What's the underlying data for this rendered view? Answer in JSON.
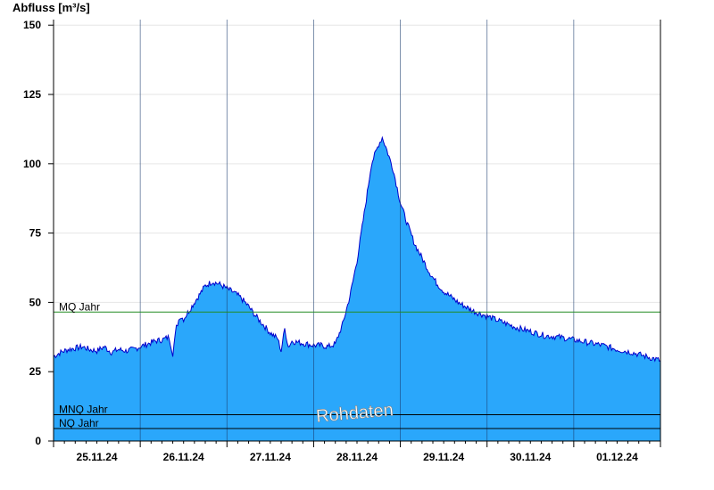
{
  "chart_data": {
    "type": "area",
    "ylabel": "Abfluss [m³/s]",
    "ylim": [
      0,
      152
    ],
    "yticks": [
      0,
      25,
      50,
      75,
      100,
      125,
      150
    ],
    "xlim": [
      "2024-11-25T00:00",
      "2024-12-02T00:00"
    ],
    "xticks": [
      {
        "day": 0.5,
        "label": "25.11.24"
      },
      {
        "day": 1.5,
        "label": "26.11.24"
      },
      {
        "day": 2.5,
        "label": "27.11.24"
      },
      {
        "day": 3.5,
        "label": "28.11.24"
      },
      {
        "day": 4.5,
        "label": "29.11.24"
      },
      {
        "day": 5.5,
        "label": "30.11.24"
      },
      {
        "day": 6.5,
        "label": "01.12.24"
      }
    ],
    "day_start": "2024-11-25",
    "grid": true,
    "series": [
      {
        "name": "",
        "color": "#2aa7fb",
        "line_color": "#0000cc",
        "points": [
          [
            "2024-11-25T00:00",
            30.5
          ],
          [
            "2024-11-25T02:00",
            32
          ],
          [
            "2024-11-25T04:00",
            33
          ],
          [
            "2024-11-25T06:00",
            33.5
          ],
          [
            "2024-11-25T08:00",
            34
          ],
          [
            "2024-11-25T10:00",
            33
          ],
          [
            "2024-11-25T12:00",
            32.5
          ],
          [
            "2024-11-25T14:00",
            34
          ],
          [
            "2024-11-25T16:00",
            32
          ],
          [
            "2024-11-25T18:00",
            33
          ],
          [
            "2024-11-25T20:00",
            32.5
          ],
          [
            "2024-11-25T22:00",
            33
          ],
          [
            "2024-11-26T00:00",
            34
          ],
          [
            "2024-11-26T02:00",
            35
          ],
          [
            "2024-11-26T04:00",
            36
          ],
          [
            "2024-11-26T06:00",
            36.5
          ],
          [
            "2024-11-26T08:00",
            37.5
          ],
          [
            "2024-11-26T09:00",
            31.5
          ],
          [
            "2024-11-26T10:00",
            41
          ],
          [
            "2024-11-26T11:00",
            45
          ],
          [
            "2024-11-26T12:00",
            44
          ],
          [
            "2024-11-26T14:00",
            48
          ],
          [
            "2024-11-26T16:00",
            52
          ],
          [
            "2024-11-26T18:00",
            56
          ],
          [
            "2024-11-26T20:00",
            57.5
          ],
          [
            "2024-11-26T22:00",
            56.5
          ],
          [
            "2024-11-27T00:00",
            55
          ],
          [
            "2024-11-27T02:00",
            53.5
          ],
          [
            "2024-11-27T04:00",
            51.5
          ],
          [
            "2024-11-27T06:00",
            48.5
          ],
          [
            "2024-11-27T08:00",
            45
          ],
          [
            "2024-11-27T10:00",
            42
          ],
          [
            "2024-11-27T12:00",
            39
          ],
          [
            "2024-11-27T14:00",
            37
          ],
          [
            "2024-11-27T15:00",
            32.5
          ],
          [
            "2024-11-27T16:00",
            40.5
          ],
          [
            "2024-11-27T17:00",
            34
          ],
          [
            "2024-11-27T18:00",
            36
          ],
          [
            "2024-11-27T20:00",
            35.5
          ],
          [
            "2024-11-27T22:00",
            35
          ],
          [
            "2024-11-28T00:00",
            34.5
          ],
          [
            "2024-11-28T02:00",
            34.5
          ],
          [
            "2024-11-28T04:00",
            34
          ],
          [
            "2024-11-28T06:00",
            35
          ],
          [
            "2024-11-28T08:00",
            42
          ],
          [
            "2024-11-28T10:00",
            52
          ],
          [
            "2024-11-28T12:00",
            65
          ],
          [
            "2024-11-28T14:00",
            82
          ],
          [
            "2024-11-28T16:00",
            100
          ],
          [
            "2024-11-28T18:00",
            107
          ],
          [
            "2024-11-28T19:00",
            109.5
          ],
          [
            "2024-11-28T20:00",
            106
          ],
          [
            "2024-11-28T22:00",
            98
          ],
          [
            "2024-11-29T00:00",
            86
          ],
          [
            "2024-11-29T02:00",
            78
          ],
          [
            "2024-11-29T04:00",
            71
          ],
          [
            "2024-11-29T06:00",
            66
          ],
          [
            "2024-11-29T08:00",
            61
          ],
          [
            "2024-11-29T10:00",
            57
          ],
          [
            "2024-11-29T12:00",
            54
          ],
          [
            "2024-11-29T14:00",
            52
          ],
          [
            "2024-11-29T16:00",
            50
          ],
          [
            "2024-11-29T18:00",
            48.5
          ],
          [
            "2024-11-29T20:00",
            47
          ],
          [
            "2024-11-29T22:00",
            46
          ],
          [
            "2024-11-30T00:00",
            45
          ],
          [
            "2024-11-30T04:00",
            43
          ],
          [
            "2024-11-30T08:00",
            41
          ],
          [
            "2024-11-30T12:00",
            39.5
          ],
          [
            "2024-11-30T16:00",
            38
          ],
          [
            "2024-11-30T20:00",
            37.5
          ],
          [
            "2024-12-01T00:00",
            36.5
          ],
          [
            "2024-12-01T04:00",
            35.5
          ],
          [
            "2024-12-01T08:00",
            34.5
          ],
          [
            "2024-12-01T12:00",
            33
          ],
          [
            "2024-12-01T16:00",
            32
          ],
          [
            "2024-12-01T20:00",
            30.5
          ],
          [
            "2024-12-02T00:00",
            29
          ]
        ]
      }
    ],
    "reference_lines": [
      {
        "label": "MQ Jahr",
        "value": 46.5,
        "color": "#228b22"
      },
      {
        "label": "MNQ Jahr",
        "value": 9.5,
        "color": "#000000"
      },
      {
        "label": "NQ Jahr",
        "value": 4.5,
        "color": "#000000"
      }
    ],
    "watermark": "Rohdaten"
  }
}
